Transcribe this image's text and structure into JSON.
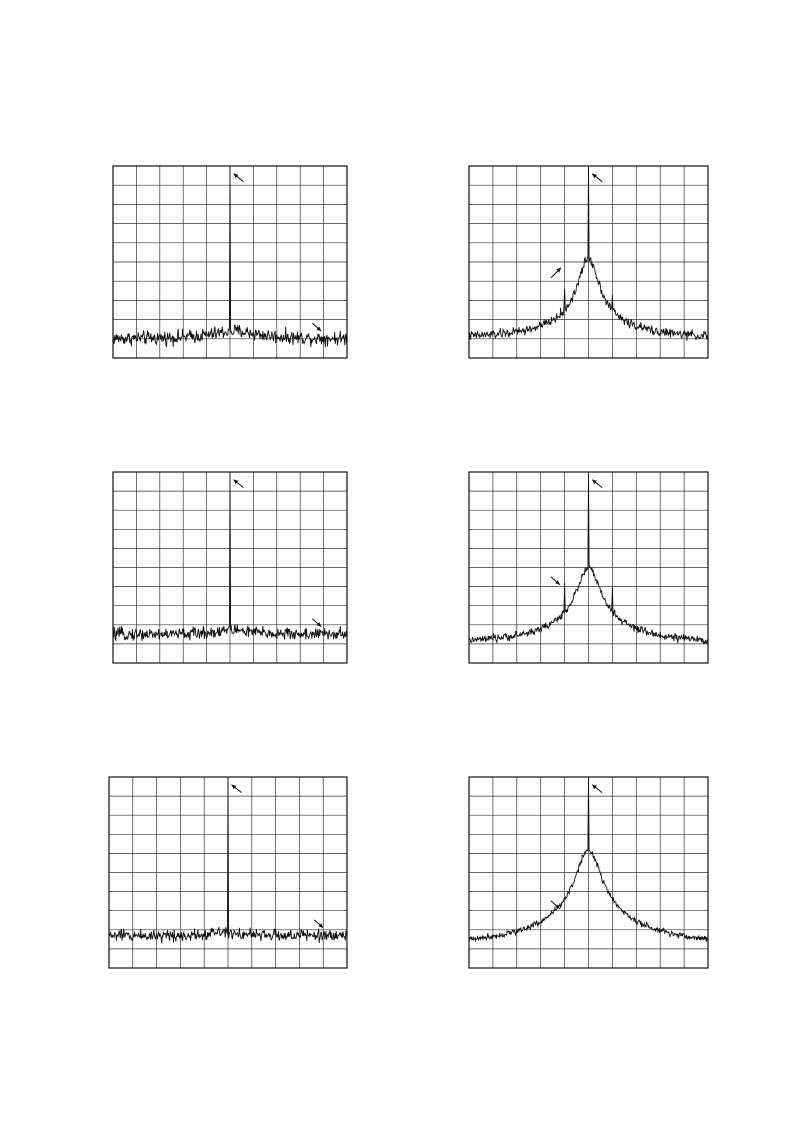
{
  "chart_data": [
    {
      "type": "line",
      "panel": "top-left",
      "grid": true,
      "grid_divisions": {
        "x": 10,
        "y": 10
      },
      "xlim": [
        -5,
        5
      ],
      "ylim": [
        0,
        10
      ],
      "noise_floor": 1.0,
      "noise_amplitude": 0.18,
      "peaks": [
        {
          "x": 0.0,
          "height": 10.0,
          "width": 0.03
        },
        {
          "x": 0.2,
          "height": 0.4,
          "width": 1.2
        }
      ],
      "sidebands": [],
      "arrows": [
        {
          "at_x": 0.15,
          "at_y": 9.6,
          "dir": "up-left"
        },
        {
          "at_x": 3.9,
          "at_y": 1.4,
          "dir": "down-right"
        }
      ]
    },
    {
      "type": "line",
      "panel": "top-right",
      "grid": true,
      "grid_divisions": {
        "x": 10,
        "y": 10
      },
      "xlim": [
        -5,
        5
      ],
      "ylim": [
        0,
        10
      ],
      "noise_floor": 1.0,
      "noise_amplitude": 0.12,
      "peaks": [
        {
          "x": 0.0,
          "height": 10.0,
          "width": 0.03
        },
        {
          "x": 0.0,
          "height": 3.2,
          "width": 0.55
        },
        {
          "x": 0.0,
          "height": 1.0,
          "width": 1.8
        }
      ],
      "sidebands": [
        {
          "x": -1.0,
          "height": 3.6
        },
        {
          "x": 1.0,
          "height": 3.3
        }
      ],
      "arrows": [
        {
          "at_x": 0.15,
          "at_y": 9.6,
          "dir": "up-left"
        },
        {
          "at_x": -1.15,
          "at_y": 4.7,
          "dir": "up-right"
        }
      ]
    },
    {
      "type": "line",
      "panel": "middle-left",
      "grid": true,
      "grid_divisions": {
        "x": 10,
        "y": 10
      },
      "xlim": [
        -5,
        5
      ],
      "ylim": [
        0,
        10
      ],
      "noise_floor": 1.5,
      "noise_amplitude": 0.16,
      "peaks": [
        {
          "x": 0.0,
          "height": 10.0,
          "width": 0.03
        },
        {
          "x": 0.1,
          "height": 0.25,
          "width": 0.8
        }
      ],
      "sidebands": [],
      "arrows": [
        {
          "at_x": 0.15,
          "at_y": 9.6,
          "dir": "up-left"
        },
        {
          "at_x": 3.9,
          "at_y": 1.9,
          "dir": "down-right"
        }
      ]
    },
    {
      "type": "line",
      "panel": "middle-right",
      "grid": true,
      "grid_divisions": {
        "x": 10,
        "y": 10
      },
      "xlim": [
        -5,
        5
      ],
      "ylim": [
        0,
        10
      ],
      "noise_floor": 1.0,
      "noise_amplitude": 0.1,
      "peaks": [
        {
          "x": 0.0,
          "height": 10.0,
          "width": 0.03
        },
        {
          "x": 0.0,
          "height": 2.8,
          "width": 0.6
        },
        {
          "x": 0.0,
          "height": 1.2,
          "width": 1.9
        }
      ],
      "sidebands": [
        {
          "x": -1.0,
          "height": 4.2
        },
        {
          "x": 1.0,
          "height": 4.0
        }
      ],
      "arrows": [
        {
          "at_x": 0.15,
          "at_y": 9.6,
          "dir": "up-left"
        },
        {
          "at_x": -1.2,
          "at_y": 4.1,
          "dir": "down-right"
        }
      ]
    },
    {
      "type": "line",
      "panel": "bottom-left",
      "grid": true,
      "grid_divisions": {
        "x": 10,
        "y": 10
      },
      "xlim": [
        -5,
        5
      ],
      "ylim": [
        0,
        10
      ],
      "noise_floor": 1.7,
      "noise_amplitude": 0.16,
      "peaks": [
        {
          "x": 0.0,
          "height": 10.0,
          "width": 0.03
        },
        {
          "x": -0.2,
          "height": 0.25,
          "width": 0.5
        }
      ],
      "sidebands": [],
      "arrows": [
        {
          "at_x": 0.15,
          "at_y": 9.6,
          "dir": "up-left"
        },
        {
          "at_x": 4.0,
          "at_y": 2.1,
          "dir": "down-right"
        }
      ]
    },
    {
      "type": "line",
      "panel": "bottom-right",
      "grid": true,
      "grid_divisions": {
        "x": 10,
        "y": 10
      },
      "xlim": [
        -5,
        5
      ],
      "ylim": [
        0,
        10
      ],
      "noise_floor": 1.2,
      "noise_amplitude": 0.08,
      "peaks": [
        {
          "x": 0.0,
          "height": 10.0,
          "width": 0.03
        },
        {
          "x": 0.0,
          "height": 3.2,
          "width": 0.65
        },
        {
          "x": 0.0,
          "height": 1.8,
          "width": 2.1
        }
      ],
      "sidebands": [],
      "arrows": [
        {
          "at_x": 0.15,
          "at_y": 9.6,
          "dir": "up-left"
        },
        {
          "at_x": -1.2,
          "at_y": 3.1,
          "dir": "down-right"
        }
      ]
    }
  ]
}
